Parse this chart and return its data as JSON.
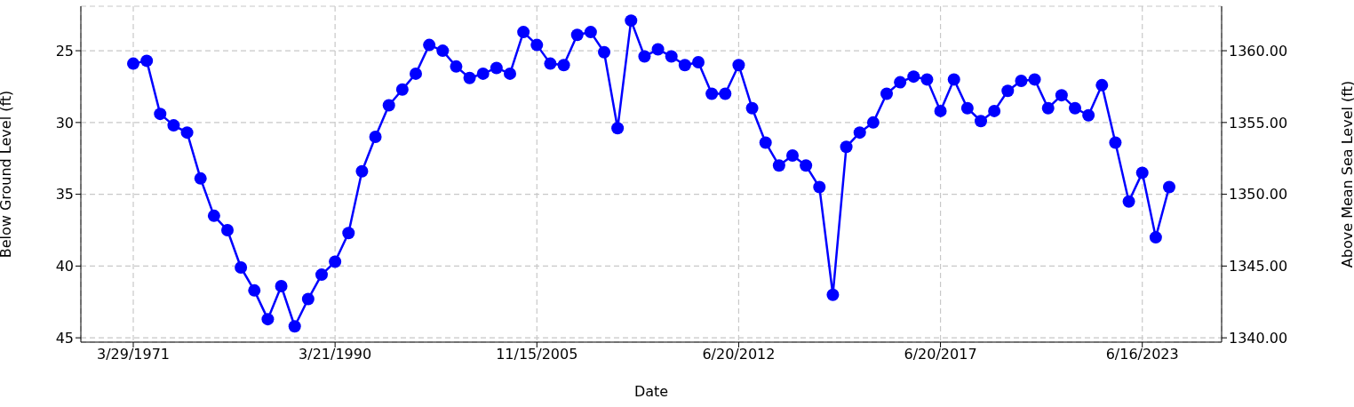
{
  "chart_data": {
    "type": "line",
    "xlabel": "Date",
    "ylabel": "Below Ground Level (ft)",
    "y2label": "Above Mean Sea Level (ft)",
    "categories": [
      "3/29/1971",
      null,
      null,
      null,
      null,
      null,
      null,
      null,
      null,
      null,
      null,
      null,
      null,
      null,
      null,
      "3/21/1990",
      null,
      null,
      null,
      null,
      null,
      null,
      null,
      null,
      null,
      null,
      null,
      null,
      null,
      null,
      "11/15/2005",
      null,
      null,
      null,
      null,
      null,
      null,
      null,
      null,
      null,
      null,
      null,
      null,
      null,
      null,
      "6/20/2012",
      null,
      null,
      null,
      null,
      null,
      null,
      null,
      null,
      null,
      null,
      null,
      null,
      null,
      null,
      "6/20/2017",
      null,
      null,
      null,
      null,
      null,
      null,
      null,
      null,
      null,
      null,
      null,
      null,
      null,
      null,
      "6/16/2023",
      null,
      null
    ],
    "series": [
      {
        "color": "#0000ff",
        "values": [
          25.9,
          25.7,
          29.4,
          30.2,
          30.7,
          33.9,
          36.5,
          37.5,
          40.1,
          41.7,
          43.7,
          41.4,
          44.2,
          42.3,
          40.6,
          39.7,
          37.7,
          33.4,
          31.0,
          28.8,
          27.7,
          26.6,
          24.6,
          25.0,
          26.1,
          26.9,
          26.6,
          26.2,
          26.6,
          23.7,
          24.6,
          25.9,
          26.0,
          23.9,
          23.7,
          25.1,
          30.4,
          22.9,
          25.4,
          24.9,
          25.4,
          26.0,
          25.8,
          28.0,
          28.0,
          26.0,
          29.0,
          31.4,
          33.0,
          32.3,
          33.0,
          34.5,
          42.0,
          31.7,
          30.7,
          30.0,
          28.0,
          27.2,
          26.8,
          27.0,
          29.2,
          27.0,
          29.0,
          29.9,
          29.2,
          27.8,
          27.1,
          27.0,
          29.0,
          28.1,
          29.0,
          29.5,
          27.4,
          31.4,
          35.5,
          33.5,
          38.0,
          34.5
        ]
      }
    ],
    "ylim": [
      45.3,
      21.9
    ],
    "yticks": [
      25,
      30,
      35,
      40,
      45
    ],
    "y2lim": [
      1339.7,
      1363.1
    ],
    "y2ticks": [
      {
        "value": 1340,
        "label": "1340.00"
      },
      {
        "value": 1345,
        "label": "1345.00"
      },
      {
        "value": 1350,
        "label": "1350.00"
      },
      {
        "value": 1355,
        "label": "1355.00"
      },
      {
        "value": 1360,
        "label": "1360.00"
      }
    ],
    "grid": true,
    "marker": "circle",
    "line_style": "solid"
  }
}
